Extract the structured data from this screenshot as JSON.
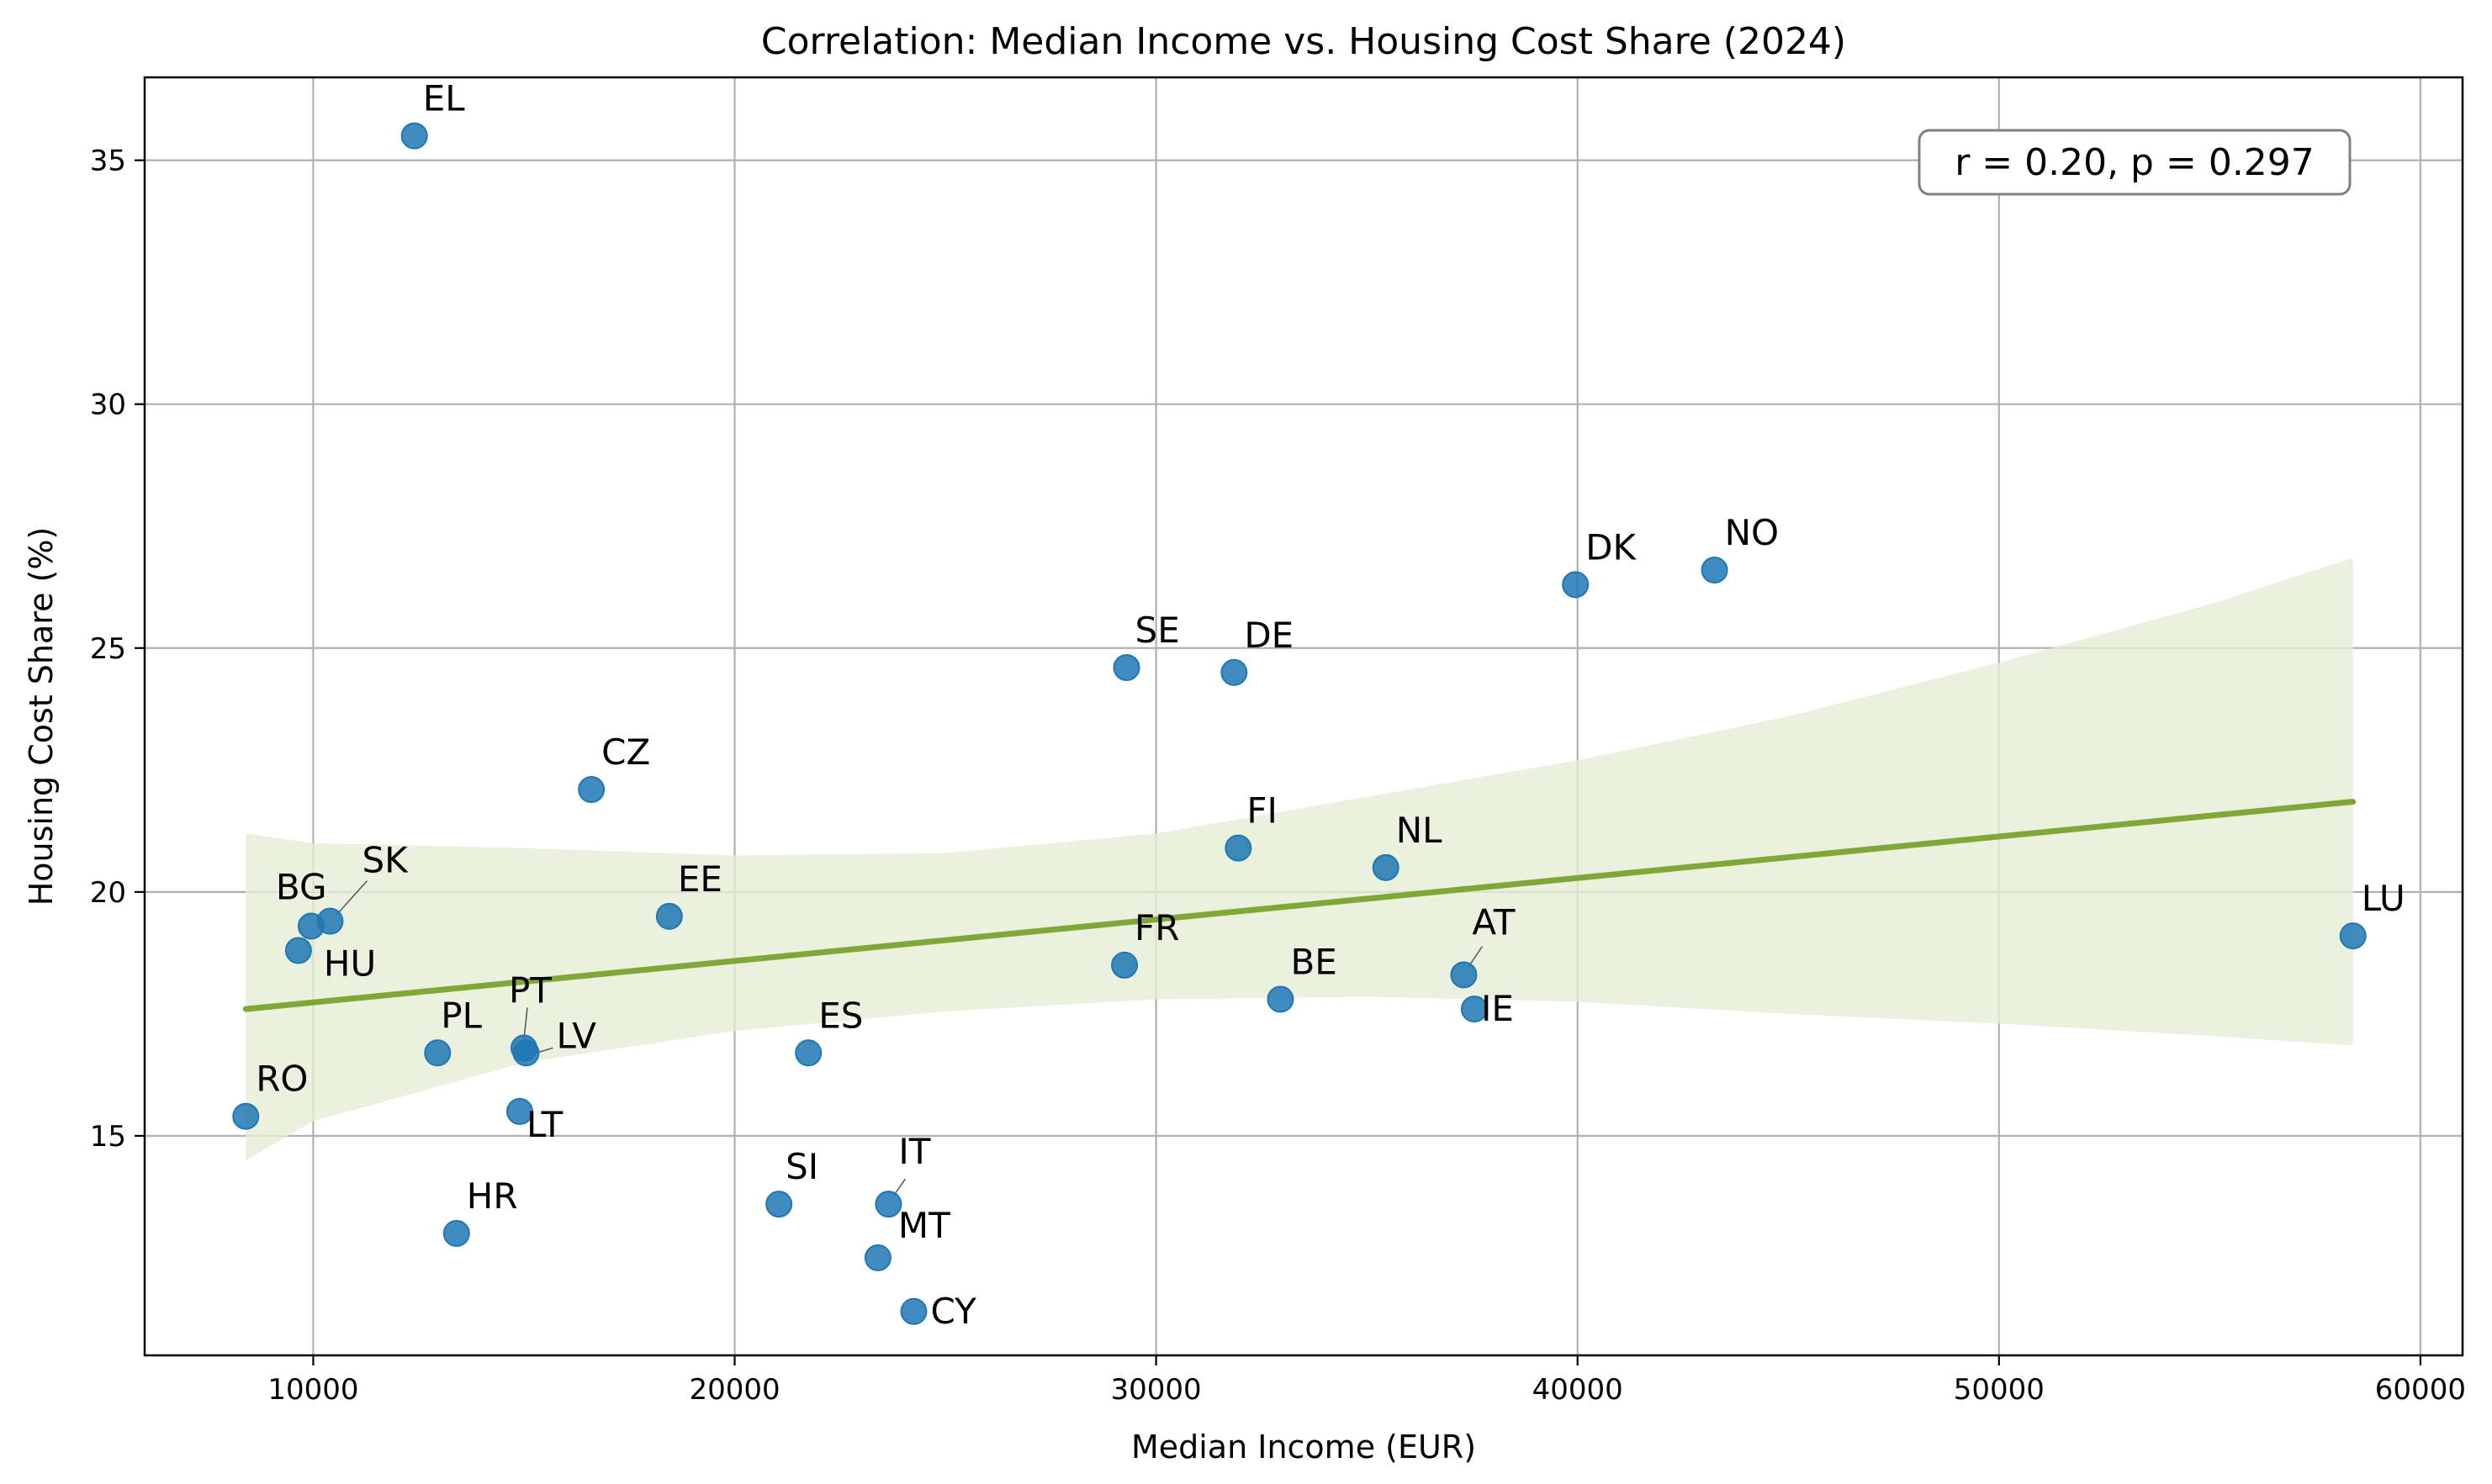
{
  "chart_data": {
    "type": "scatter",
    "title": "Correlation: Median Income vs. Housing Cost Share (2024)",
    "xlabel": "Median Income (EUR)",
    "ylabel": "Housing Cost Share (%)",
    "xlim": [
      6000,
      61000
    ],
    "ylim": [
      10.5,
      36.7
    ],
    "xticks": [
      10000,
      20000,
      30000,
      40000,
      50000,
      60000
    ],
    "yticks": [
      15,
      20,
      25,
      30,
      35
    ],
    "grid": true,
    "annotation": "r = 0.20, p = 0.297",
    "annotation_position": "top-right",
    "point_color": "#1f77b4",
    "trend_color": "#7fa836",
    "band_color": "#e6edd6",
    "points": [
      {
        "label": "EL",
        "x": 12400,
        "y": 35.5
      },
      {
        "label": "DK",
        "x": 39950,
        "y": 26.3
      },
      {
        "label": "NO",
        "x": 43250,
        "y": 26.6
      },
      {
        "label": "SE",
        "x": 29300,
        "y": 24.6
      },
      {
        "label": "DE",
        "x": 31850,
        "y": 24.5
      },
      {
        "label": "CZ",
        "x": 16600,
        "y": 22.1
      },
      {
        "label": "FI",
        "x": 31950,
        "y": 20.9
      },
      {
        "label": "NL",
        "x": 35450,
        "y": 20.5
      },
      {
        "label": "EE",
        "x": 18450,
        "y": 19.5
      },
      {
        "label": "SK",
        "x": 10400,
        "y": 19.4
      },
      {
        "label": "BG",
        "x": 9950,
        "y": 19.3
      },
      {
        "label": "HU",
        "x": 9650,
        "y": 18.8
      },
      {
        "label": "LU",
        "x": 58400,
        "y": 19.1
      },
      {
        "label": "FR",
        "x": 29250,
        "y": 18.5
      },
      {
        "label": "AT",
        "x": 37300,
        "y": 18.3
      },
      {
        "label": "BE",
        "x": 32950,
        "y": 17.8
      },
      {
        "label": "IE",
        "x": 37550,
        "y": 17.6
      },
      {
        "label": "PT",
        "x": 15000,
        "y": 16.8
      },
      {
        "label": "LV",
        "x": 15050,
        "y": 16.7
      },
      {
        "label": "PL",
        "x": 12950,
        "y": 16.7
      },
      {
        "label": "ES",
        "x": 21750,
        "y": 16.7
      },
      {
        "label": "RO",
        "x": 8400,
        "y": 15.4
      },
      {
        "label": "LT",
        "x": 14900,
        "y": 15.5
      },
      {
        "label": "SI",
        "x": 21050,
        "y": 13.6
      },
      {
        "label": "IT",
        "x": 23650,
        "y": 13.6
      },
      {
        "label": "HR",
        "x": 13400,
        "y": 13.0
      },
      {
        "label": "MT",
        "x": 23400,
        "y": 12.5
      },
      {
        "label": "CY",
        "x": 24250,
        "y": 11.4
      }
    ],
    "trend_line": {
      "x": [
        8400,
        58400
      ],
      "y": [
        17.6,
        21.85
      ]
    },
    "confidence_band": {
      "x": [
        8400,
        10000,
        15000,
        20000,
        25000,
        30000,
        35000,
        40000,
        45000,
        50000,
        55000,
        58400
      ],
      "lower": [
        14.5,
        15.3,
        16.5,
        17.15,
        17.55,
        17.8,
        17.85,
        17.75,
        17.5,
        17.3,
        17.05,
        16.85
      ],
      "upper": [
        21.2,
        21.0,
        20.9,
        20.75,
        20.8,
        21.2,
        21.95,
        22.7,
        23.6,
        24.7,
        25.9,
        26.85
      ]
    }
  }
}
